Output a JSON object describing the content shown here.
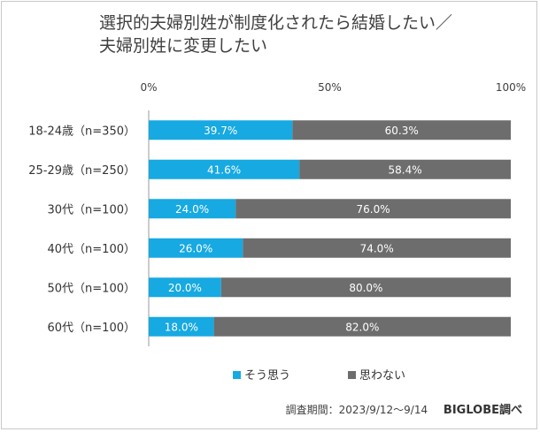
{
  "title_lines": [
    "選択的夫婦別姓が制度化されたら結婚したい／",
    "夫婦別姓に変更したい"
  ],
  "footer": {
    "survey_period": "調査期間：2023/9/12〜9/14",
    "brand": "BIGLOBE調べ"
  },
  "colors": {
    "agree": "#17a9e1",
    "disagree": "#6d6d6d",
    "axis": "#999999"
  },
  "chart_data": {
    "type": "bar",
    "orientation": "horizontal",
    "stacked": true,
    "percent_stacked": true,
    "categories": [
      "18-24歳（n=350）",
      "25-29歳（n=250）",
      "30代（n=100）",
      "40代（n=100）",
      "50代（n=100）",
      "60代（n=100）"
    ],
    "series": [
      {
        "name": "そう思う",
        "values": [
          39.7,
          41.6,
          24.0,
          26.0,
          20.0,
          18.0
        ],
        "labels": [
          "39.7%",
          "41.6%",
          "24.0%",
          "26.0%",
          "20.0%",
          "18.0%"
        ]
      },
      {
        "name": "思わない",
        "values": [
          60.3,
          58.4,
          76.0,
          74.0,
          80.0,
          82.0
        ],
        "labels": [
          "60.3%",
          "58.4%",
          "76.0%",
          "74.0%",
          "80.0%",
          "82.0%"
        ]
      }
    ],
    "xlim": [
      0,
      100
    ],
    "x_ticks": [
      0,
      50,
      100
    ],
    "x_tick_labels": [
      "0%",
      "50%",
      "100%"
    ],
    "legend_position": "bottom"
  }
}
